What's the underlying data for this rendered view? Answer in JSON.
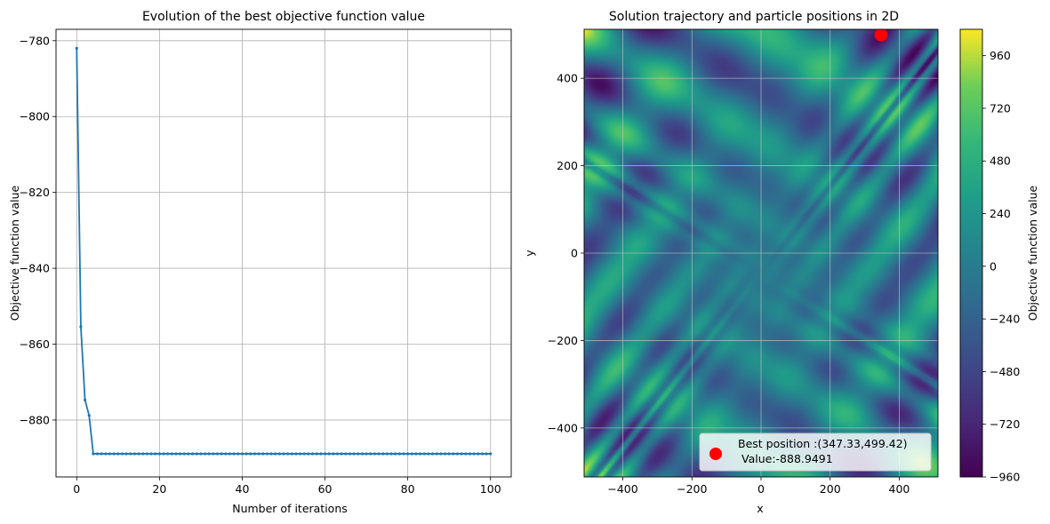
{
  "chart_data": [
    {
      "type": "line",
      "title": "Evolution of the best objective function value",
      "xlabel": "Number of iterations",
      "ylabel": "Objective function value",
      "xlim": [
        -5,
        105
      ],
      "ylim": [
        -895,
        -777
      ],
      "xticks": [
        0,
        20,
        40,
        60,
        80,
        100
      ],
      "yticks": [
        -780,
        -800,
        -820,
        -840,
        -860,
        -880
      ],
      "grid": true,
      "color": "#1f77b4",
      "series": [
        {
          "x": [
            0,
            1,
            2,
            3,
            4
          ],
          "values": [
            -782.0,
            -855.4,
            -874.7,
            -878.8,
            -888.9
          ],
          "plateau_value": -888.9,
          "plateau_from": 4,
          "plateau_to": 100
        }
      ]
    },
    {
      "type": "heatmap",
      "title": "Solution trajectory and particle positions in 2D",
      "xlabel": "x",
      "ylabel": "y",
      "xlim": [
        -512,
        512
      ],
      "ylim": [
        -512,
        512
      ],
      "xticks": [
        -400,
        -200,
        0,
        200,
        400
      ],
      "yticks": [
        400,
        200,
        0,
        -200,
        -400
      ],
      "grid": true,
      "colormap": "viridis",
      "colorbar": {
        "label": "Objective function value",
        "range": [
          -960,
          1080
        ],
        "ticks": [
          960,
          720,
          480,
          240,
          0,
          -240,
          -480,
          -720,
          -960
        ]
      },
      "best_point": {
        "x": 347.33,
        "y": 499.42,
        "value": -888.9491,
        "color": "#ff0000"
      },
      "legend": {
        "position": "lower-right",
        "line1": "Best position :(347.33,499.42)",
        "line2": "Value:-888.9491"
      }
    }
  ]
}
